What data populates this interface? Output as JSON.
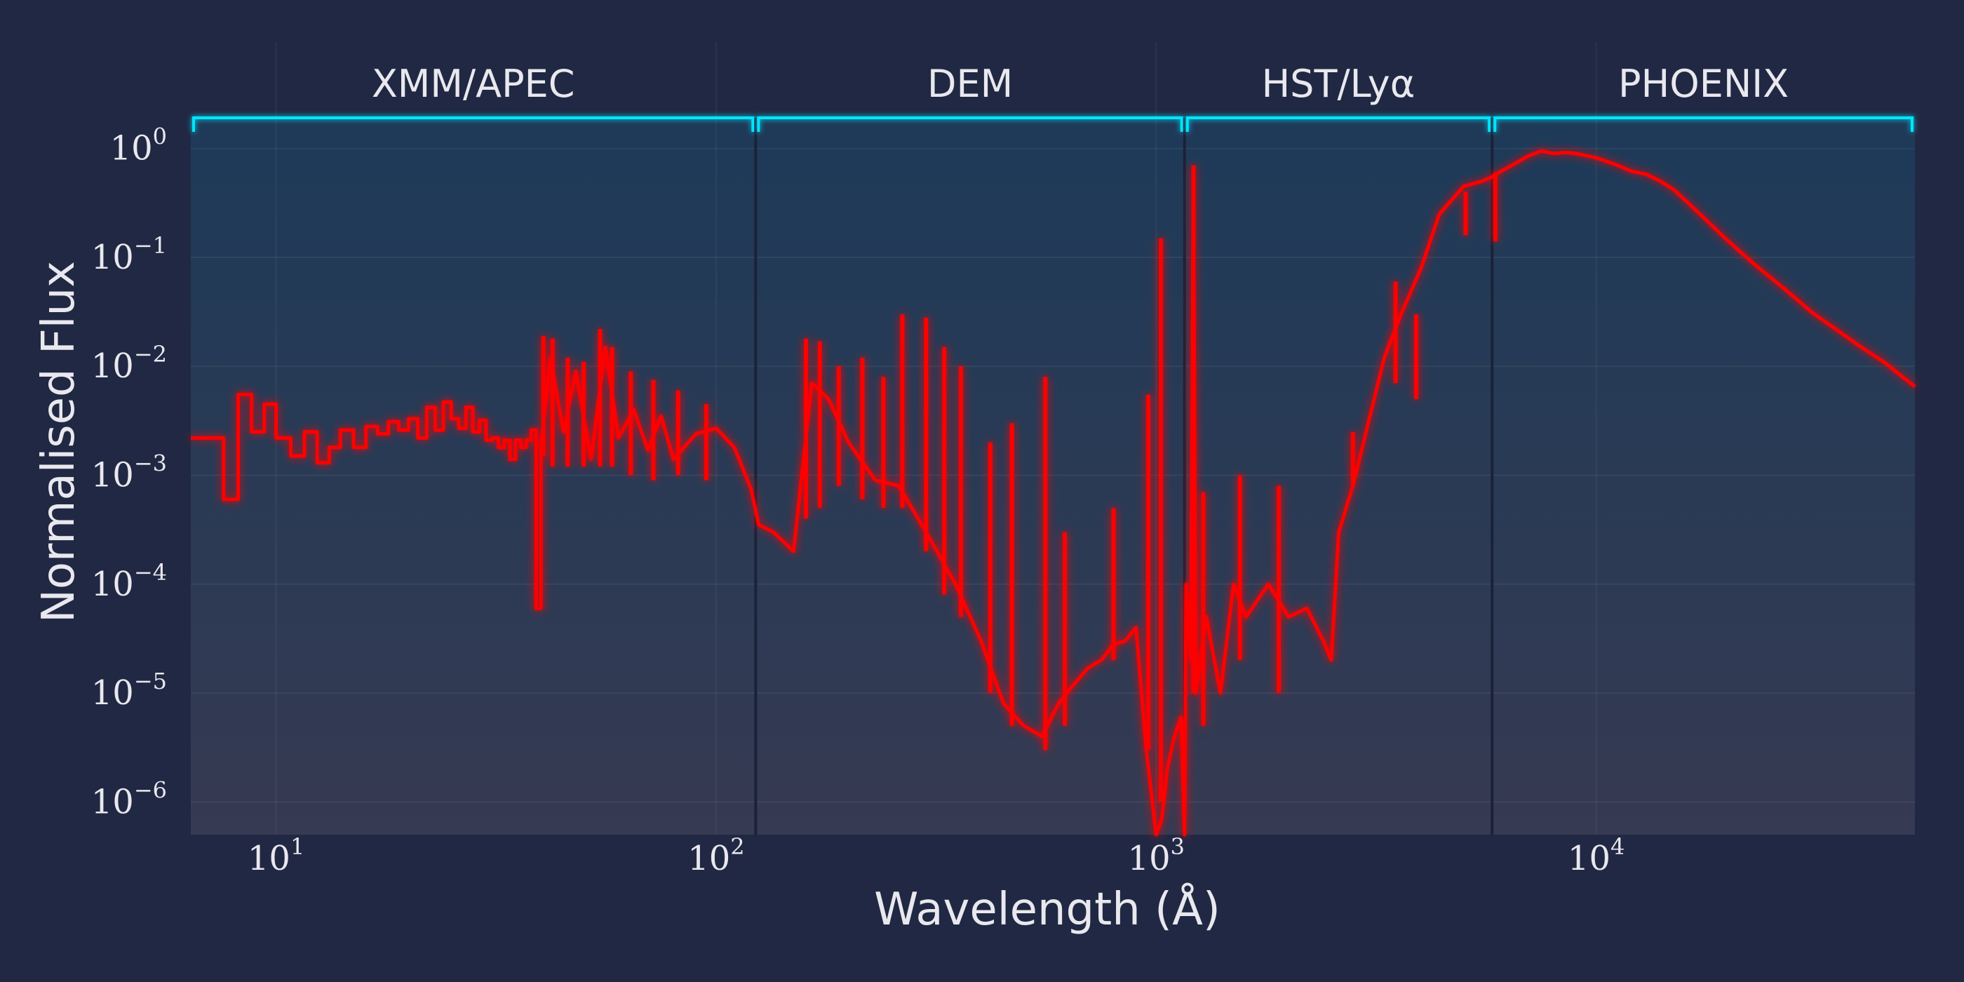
{
  "chart_data": {
    "type": "line",
    "xlabel": "Wavelength (Å)",
    "ylabel": "Normalised Flux",
    "x_scale": "log",
    "y_scale": "log",
    "xlim": [
      6.4,
      53000
    ],
    "ylim": [
      5e-07,
      2
    ],
    "grid": true,
    "colors": {
      "line": "#ff0000",
      "bracket": "#00e5ff",
      "shade_top": "#1d3a58",
      "shade_bottom": "#363a52",
      "boundary": "#1a2238",
      "background": "#212843"
    },
    "x_ticks": [
      {
        "value": 10,
        "base": "10",
        "exp": "1"
      },
      {
        "value": 100,
        "base": "10",
        "exp": "2"
      },
      {
        "value": 1000,
        "base": "10",
        "exp": "3"
      },
      {
        "value": 10000,
        "base": "10",
        "exp": "4"
      }
    ],
    "y_ticks": [
      {
        "value": 1,
        "base": "10",
        "exp": "0"
      },
      {
        "value": 0.1,
        "base": "10",
        "exp": "−1"
      },
      {
        "value": 0.01,
        "base": "10",
        "exp": "−2"
      },
      {
        "value": 0.001,
        "base": "10",
        "exp": "−3"
      },
      {
        "value": 0.0001,
        "base": "10",
        "exp": "−4"
      },
      {
        "value": 1e-05,
        "base": "10",
        "exp": "−5"
      },
      {
        "value": 1e-06,
        "base": "10",
        "exp": "−6"
      }
    ],
    "regions": [
      {
        "label": "XMM/APEC",
        "x_start": 6.4,
        "x_end": 123
      },
      {
        "label": "DEM",
        "x_start": 123,
        "x_end": 1160
      },
      {
        "label": "HST/Lyα",
        "x_start": 1160,
        "x_end": 5800
      },
      {
        "label": "PHOENIX",
        "x_start": 5800,
        "x_end": 53000
      }
    ],
    "series": [
      {
        "style": "step",
        "x": [
          6.4,
          7.0,
          7.6,
          8.2,
          8.8,
          9.4,
          10,
          10.8,
          11.6,
          12.4,
          13.2,
          14,
          15,
          16,
          17,
          18,
          19,
          20,
          21,
          22,
          23,
          24,
          25,
          26,
          27,
          28,
          29,
          30,
          31,
          32,
          33,
          34,
          35,
          36,
          37,
          38,
          39,
          40
        ],
        "y": [
          0.0022,
          0.0022,
          0.0006,
          0.0055,
          0.0025,
          0.0045,
          0.0022,
          0.0015,
          0.0025,
          0.0013,
          0.0018,
          0.0026,
          0.0018,
          0.0028,
          0.0024,
          0.0031,
          0.0026,
          0.0033,
          0.0022,
          0.0042,
          0.0026,
          0.0047,
          0.0033,
          0.0027,
          0.0042,
          0.0025,
          0.0032,
          0.0021,
          0.0022,
          0.0018,
          0.0021,
          0.0014,
          0.0021,
          0.0018,
          0.0021,
          0.0026,
          6e-05,
          0.0022
        ]
      },
      {
        "style": "line",
        "x": [
          40,
          42,
          45,
          48,
          52,
          56,
          60,
          65,
          70,
          75,
          80,
          90,
          100,
          110,
          120,
          125,
          135,
          150,
          165,
          180,
          200,
          230,
          260,
          300,
          350,
          400,
          450,
          500,
          550,
          600,
          650,
          700,
          750,
          800,
          850,
          900,
          950,
          1000,
          1030,
          1060,
          1100,
          1140,
          1160,
          1170,
          1200,
          1215,
          1230,
          1300,
          1400,
          1500,
          1600,
          1800,
          2000,
          2200,
          2400,
          2500,
          2600,
          2800,
          3000,
          3300,
          3600,
          4000,
          4400,
          5000,
          5500,
          5800,
          6000,
          7000,
          7500,
          8000,
          8500,
          9000,
          10000,
          11000,
          12000,
          13000,
          14000,
          15000,
          16000,
          18000,
          20000,
          23000,
          27000,
          31000,
          35000,
          40000,
          45000,
          53000
        ],
        "y": [
          0.0018,
          0.012,
          0.0025,
          0.009,
          0.0014,
          0.015,
          0.0022,
          0.004,
          0.0017,
          0.0035,
          0.0014,
          0.0024,
          0.0027,
          0.0018,
          0.00075,
          0.00035,
          0.0003,
          0.0002,
          0.007,
          0.005,
          0.002,
          0.0009,
          0.0008,
          0.0003,
          0.0001,
          3e-05,
          8e-06,
          5e-06,
          4e-06,
          8e-06,
          1.2e-05,
          1.7e-05,
          2e-05,
          2.8e-05,
          3e-05,
          4e-05,
          3e-06,
          5e-07,
          7e-07,
          2e-06,
          4e-06,
          6e-06,
          5e-07,
          0.0001,
          2e-05,
          0.6,
          1e-05,
          5e-05,
          1e-05,
          0.0001,
          5e-05,
          0.0001,
          5e-05,
          6e-05,
          3e-05,
          2e-05,
          0.0003,
          0.0008,
          0.0025,
          0.012,
          0.03,
          0.08,
          0.25,
          0.45,
          0.5,
          0.55,
          0.6,
          0.85,
          0.95,
          0.9,
          0.92,
          0.9,
          0.82,
          0.72,
          0.62,
          0.58,
          0.5,
          0.42,
          0.33,
          0.21,
          0.14,
          0.085,
          0.05,
          0.031,
          0.022,
          0.015,
          0.011,
          0.0065
        ]
      }
    ],
    "spikes": [
      {
        "x": 40.5,
        "y_low": 0.0015,
        "y_high": 0.019
      },
      {
        "x": 42.5,
        "y_low": 0.0012,
        "y_high": 0.018
      },
      {
        "x": 46,
        "y_low": 0.0012,
        "y_high": 0.012
      },
      {
        "x": 50,
        "y_low": 0.0012,
        "y_high": 0.011
      },
      {
        "x": 54.5,
        "y_low": 0.0012,
        "y_high": 0.022
      },
      {
        "x": 58,
        "y_low": 0.0012,
        "y_high": 0.015
      },
      {
        "x": 64,
        "y_low": 0.001,
        "y_high": 0.009
      },
      {
        "x": 72,
        "y_low": 0.0009,
        "y_high": 0.0075
      },
      {
        "x": 82,
        "y_low": 0.001,
        "y_high": 0.006
      },
      {
        "x": 95,
        "y_low": 0.0009,
        "y_high": 0.0045
      },
      {
        "x": 160,
        "y_low": 0.0004,
        "y_high": 0.018
      },
      {
        "x": 172,
        "y_low": 0.0005,
        "y_high": 0.017
      },
      {
        "x": 190,
        "y_low": 0.0008,
        "y_high": 0.01
      },
      {
        "x": 215,
        "y_low": 0.0006,
        "y_high": 0.012
      },
      {
        "x": 240,
        "y_low": 0.0005,
        "y_high": 0.008
      },
      {
        "x": 265,
        "y_low": 0.0005,
        "y_high": 0.03
      },
      {
        "x": 300,
        "y_low": 0.0002,
        "y_high": 0.028
      },
      {
        "x": 330,
        "y_low": 8e-05,
        "y_high": 0.015
      },
      {
        "x": 360,
        "y_low": 5e-05,
        "y_high": 0.01
      },
      {
        "x": 420,
        "y_low": 1e-05,
        "y_high": 0.002
      },
      {
        "x": 470,
        "y_low": 5e-06,
        "y_high": 0.003
      },
      {
        "x": 560,
        "y_low": 3e-06,
        "y_high": 0.008
      },
      {
        "x": 620,
        "y_low": 5e-06,
        "y_high": 0.0003
      },
      {
        "x": 800,
        "y_low": 2e-05,
        "y_high": 0.0005
      },
      {
        "x": 960,
        "y_low": 3e-06,
        "y_high": 0.0055
      },
      {
        "x": 1025,
        "y_low": 1e-06,
        "y_high": 0.15
      },
      {
        "x": 1215.7,
        "y_low": 1e-05,
        "y_high": 0.7
      },
      {
        "x": 1280,
        "y_low": 5e-06,
        "y_high": 0.0007
      },
      {
        "x": 1550,
        "y_low": 2e-05,
        "y_high": 0.001
      },
      {
        "x": 1900,
        "y_low": 1e-05,
        "y_high": 0.0008
      },
      {
        "x": 2800,
        "y_low": 0.0008,
        "y_high": 0.0025
      },
      {
        "x": 3500,
        "y_low": 0.007,
        "y_high": 0.06
      },
      {
        "x": 3900,
        "y_low": 0.005,
        "y_high": 0.03
      },
      {
        "x": 5050,
        "y_low": 0.16,
        "y_high": 0.4
      },
      {
        "x": 5900,
        "y_low": 0.14,
        "y_high": 0.6
      }
    ]
  }
}
